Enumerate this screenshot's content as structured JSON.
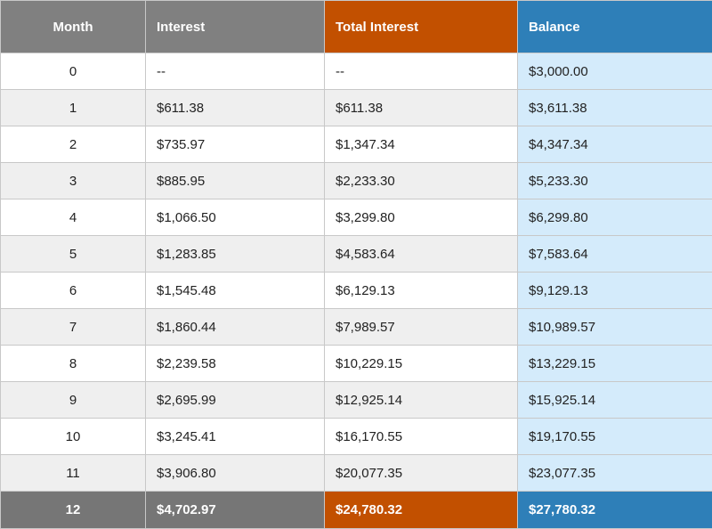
{
  "table": {
    "headers": {
      "month": "Month",
      "interest": "Interest",
      "total_interest": "Total Interest",
      "balance": "Balance"
    },
    "rows": [
      {
        "month": "0",
        "interest": "--",
        "total_interest": "--",
        "balance": "$3,000.00"
      },
      {
        "month": "1",
        "interest": "$611.38",
        "total_interest": "$611.38",
        "balance": "$3,611.38"
      },
      {
        "month": "2",
        "interest": "$735.97",
        "total_interest": "$1,347.34",
        "balance": "$4,347.34"
      },
      {
        "month": "3",
        "interest": "$885.95",
        "total_interest": "$2,233.30",
        "balance": "$5,233.30"
      },
      {
        "month": "4",
        "interest": "$1,066.50",
        "total_interest": "$3,299.80",
        "balance": "$6,299.80"
      },
      {
        "month": "5",
        "interest": "$1,283.85",
        "total_interest": "$4,583.64",
        "balance": "$7,583.64"
      },
      {
        "month": "6",
        "interest": "$1,545.48",
        "total_interest": "$6,129.13",
        "balance": "$9,129.13"
      },
      {
        "month": "7",
        "interest": "$1,860.44",
        "total_interest": "$7,989.57",
        "balance": "$10,989.57"
      },
      {
        "month": "8",
        "interest": "$2,239.58",
        "total_interest": "$10,229.15",
        "balance": "$13,229.15"
      },
      {
        "month": "9",
        "interest": "$2,695.99",
        "total_interest": "$12,925.14",
        "balance": "$15,925.14"
      },
      {
        "month": "10",
        "interest": "$3,245.41",
        "total_interest": "$16,170.55",
        "balance": "$19,170.55"
      },
      {
        "month": "11",
        "interest": "$3,906.80",
        "total_interest": "$20,077.35",
        "balance": "$23,077.35"
      },
      {
        "month": "12",
        "interest": "$4,702.97",
        "total_interest": "$24,780.32",
        "balance": "$27,780.32"
      }
    ]
  },
  "colors": {
    "header_gray": "#808080",
    "total_interest_orange": "#c25000",
    "balance_blue": "#2e7fb8",
    "balance_light_blue": "#d4ebfb",
    "row_stripe": "#efefef"
  }
}
